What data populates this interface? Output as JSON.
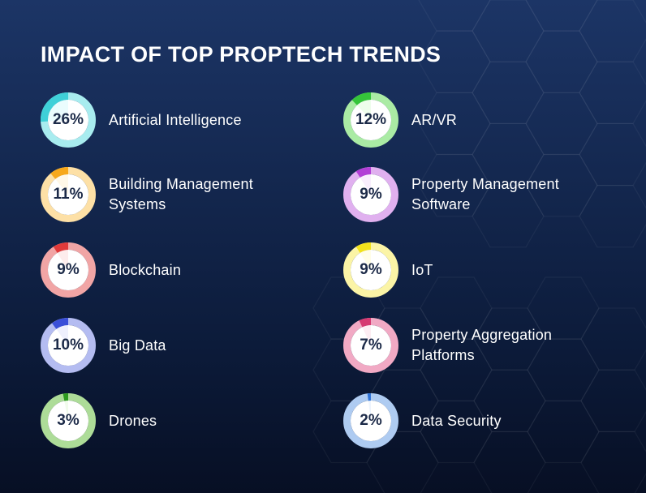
{
  "chart_data": {
    "type": "donut",
    "title": "IMPACT OF TOP PROPTECH TRENDS",
    "items": [
      {
        "label": "Artificial Intelligence",
        "value": 26,
        "display": "26%",
        "color": "#3fd0d8",
        "track": "#a8ecef",
        "fill": "#eafcfd"
      },
      {
        "label": "Building Management Systems",
        "value": 11,
        "display": "11%",
        "color": "#f7a81b",
        "track": "#fde0a6",
        "fill": "#fff8e8"
      },
      {
        "label": "Blockchain",
        "value": 9,
        "display": "9%",
        "color": "#e03a3a",
        "track": "#f1a5a5",
        "fill": "#fdecec"
      },
      {
        "label": "Big Data",
        "value": 10,
        "display": "10%",
        "color": "#3a4fd8",
        "track": "#b4bcf1",
        "fill": "#eef0fd"
      },
      {
        "label": "Drones",
        "value": 3,
        "display": "3%",
        "color": "#2e9b1f",
        "track": "#addc98",
        "fill": "#f1fbec"
      },
      {
        "label": "AR/VR",
        "value": 12,
        "display": "12%",
        "color": "#35c43a",
        "track": "#aaeba4",
        "fill": "#eefdec"
      },
      {
        "label": "Property Management Software",
        "value": 9,
        "display": "9%",
        "color": "#b23fd6",
        "track": "#e0b0ef",
        "fill": "#f9eefd"
      },
      {
        "label": "IoT",
        "value": 9,
        "display": "9%",
        "color": "#f2e21c",
        "track": "#fbf4a6",
        "fill": "#fffde8"
      },
      {
        "label": "Property Aggregation Platforms",
        "value": 7,
        "display": "7%",
        "color": "#d63a72",
        "track": "#f1a9c4",
        "fill": "#fdedf3"
      },
      {
        "label": "Data Security",
        "value": 2,
        "display": "2%",
        "color": "#2e72d6",
        "track": "#aecbf1",
        "fill": "#edf4fd"
      }
    ]
  }
}
